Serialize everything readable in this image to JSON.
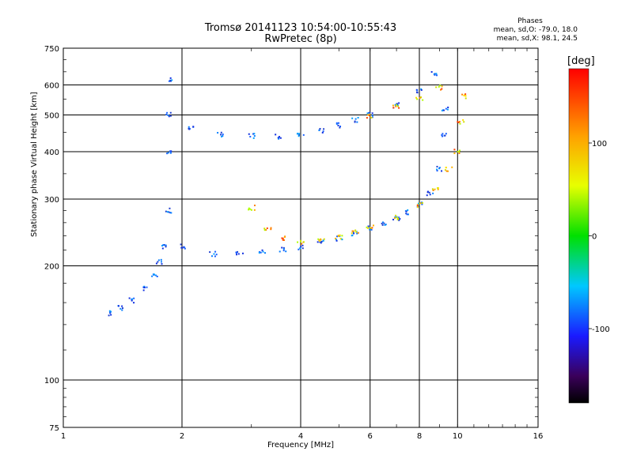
{
  "title_line1": "Tromsø 20141123 10:54:00-10:55:43",
  "title_line2": "RwPretec (8p)",
  "stats": {
    "header": "Phases",
    "line_o": "mean, sd,O:  -79.0, 18.0",
    "line_x": "mean, sd,X:  98.1, 24.5"
  },
  "colorbar": {
    "unit_label": "[deg]",
    "ticks": [
      "100",
      "0",
      "-100"
    ],
    "tick_values": [
      100,
      0,
      -100
    ],
    "range": [
      -180,
      180
    ]
  },
  "chart_data": {
    "type": "scatter",
    "title": "Tromsø 20141123 10:54:00-10:55:43",
    "subtitle": "RwPretec (8p)",
    "xlabel": "Frequency [MHz]",
    "ylabel": "Stationary phase Virtual Height [km]",
    "x_scale": "log",
    "y_scale": "log",
    "xlim": [
      1,
      16
    ],
    "ylim": [
      75,
      750
    ],
    "xticks": [
      1,
      2,
      4,
      6,
      8,
      10,
      16
    ],
    "xtick_labels": [
      "1",
      "2",
      "4",
      "6",
      "8",
      "10",
      "16"
    ],
    "yticks": [
      75,
      100,
      200,
      300,
      400,
      500,
      600,
      750
    ],
    "ytick_labels": [
      "75",
      "100",
      "200",
      "300",
      "400",
      "500",
      "600",
      "750"
    ],
    "grid": true,
    "color_scale": "phase [deg], -180 to 180",
    "series": [
      {
        "mode": "O",
        "phase_mean": -79.0,
        "phase_sd": 18.0,
        "points": [
          [
            1.3,
            150
          ],
          [
            1.4,
            155
          ],
          [
            1.5,
            162
          ],
          [
            1.6,
            175
          ],
          [
            1.7,
            190
          ],
          [
            1.75,
            205
          ],
          [
            1.8,
            225
          ],
          [
            1.85,
            280
          ],
          [
            1.85,
            400
          ],
          [
            1.85,
            500
          ],
          [
            1.85,
            620
          ],
          [
            2.0,
            225
          ],
          [
            2.4,
            215
          ],
          [
            2.8,
            215
          ],
          [
            3.2,
            218
          ],
          [
            3.6,
            221
          ],
          [
            4.0,
            224
          ],
          [
            4.5,
            230
          ],
          [
            5.0,
            236
          ],
          [
            5.5,
            243
          ],
          [
            6.0,
            251
          ],
          [
            6.5,
            258
          ],
          [
            7.0,
            266
          ],
          [
            7.5,
            277
          ],
          [
            8.0,
            290
          ],
          [
            8.5,
            310
          ],
          [
            9.0,
            360
          ],
          [
            9.2,
            440
          ],
          [
            9.3,
            520
          ],
          [
            2.1,
            460
          ],
          [
            2.5,
            445
          ],
          [
            3.0,
            440
          ],
          [
            3.5,
            438
          ],
          [
            4.0,
            445
          ],
          [
            4.5,
            455
          ],
          [
            5.0,
            470
          ],
          [
            5.5,
            485
          ],
          [
            6.0,
            500
          ],
          [
            7.0,
            530
          ],
          [
            8.0,
            580
          ],
          [
            8.7,
            640
          ]
        ]
      },
      {
        "mode": "X",
        "phase_mean": 98.1,
        "phase_sd": 24.5,
        "points": [
          [
            3.0,
            285
          ],
          [
            3.3,
            250
          ],
          [
            3.6,
            236
          ],
          [
            4.0,
            230
          ],
          [
            4.5,
            232
          ],
          [
            5.0,
            238
          ],
          [
            5.5,
            245
          ],
          [
            6.0,
            252
          ],
          [
            7.0,
            268
          ],
          [
            8.0,
            290
          ],
          [
            8.8,
            320
          ],
          [
            9.5,
            360
          ],
          [
            10.0,
            400
          ],
          [
            10.2,
            480
          ],
          [
            10.3,
            560
          ],
          [
            6.0,
            495
          ],
          [
            7.0,
            525
          ],
          [
            8.0,
            550
          ],
          [
            9.0,
            590
          ]
        ]
      }
    ]
  }
}
